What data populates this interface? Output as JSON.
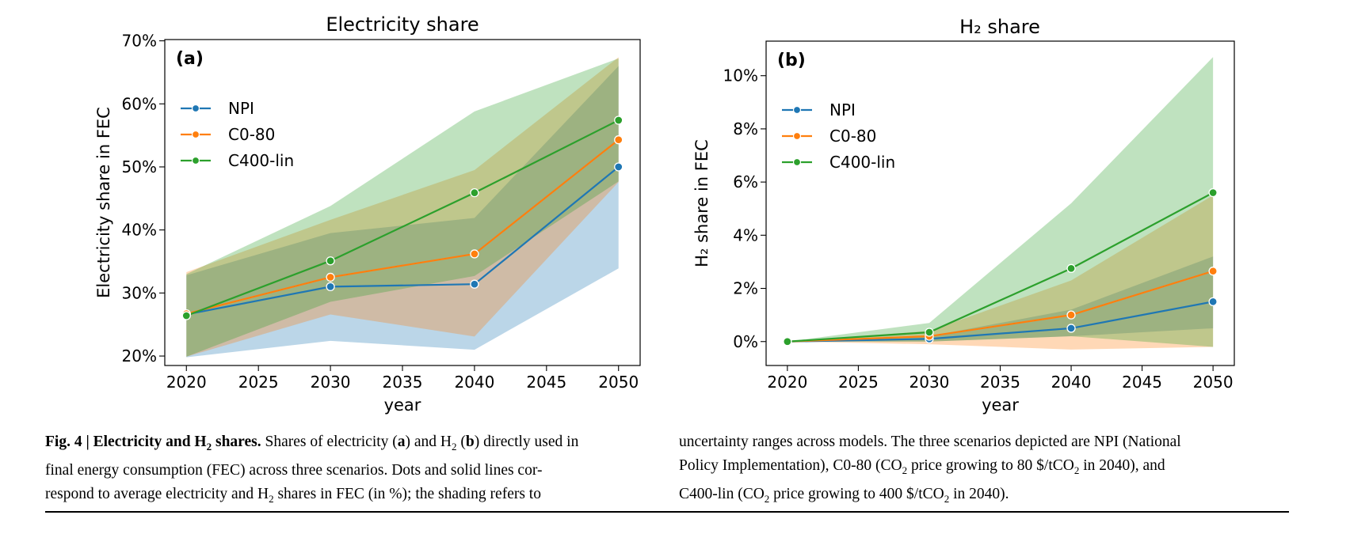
{
  "chart_data": [
    {
      "type": "line",
      "panel_label": "(a)",
      "title": "Electricity share",
      "xlabel": "year",
      "ylabel": "Electricity share in FEC",
      "x_ticks": [
        "2020",
        "2025",
        "2030",
        "2035",
        "2040",
        "2045",
        "2050"
      ],
      "y_ticks": [
        "20%",
        "30%",
        "40%",
        "50%",
        "60%",
        "70%"
      ],
      "xlim": [
        2018.5,
        2051.5
      ],
      "ylim": [
        18.5,
        70.2
      ],
      "legend_position": "upper-left",
      "x": [
        2020,
        2030,
        2040,
        2050
      ],
      "series": [
        {
          "name": "NPI",
          "color": "#1f77b4",
          "values": [
            26.6,
            31.0,
            31.4,
            50.0
          ],
          "band_lower": [
            19.8,
            22.4,
            21.0,
            33.9
          ],
          "band_upper": [
            32.8,
            39.5,
            41.9,
            66.0
          ]
        },
        {
          "name": "C0-80",
          "color": "#ff7f0e",
          "values": [
            26.7,
            32.5,
            36.2,
            54.3
          ],
          "band_lower": [
            19.9,
            26.6,
            23.1,
            47.6
          ],
          "band_upper": [
            33.3,
            41.6,
            49.5,
            67.4
          ]
        },
        {
          "name": "C400-lin",
          "color": "#2ca02c",
          "values": [
            26.4,
            35.1,
            45.9,
            57.4
          ],
          "band_lower": [
            19.9,
            28.6,
            32.7,
            47.7
          ],
          "band_upper": [
            33.0,
            43.8,
            58.8,
            67.2
          ]
        }
      ]
    },
    {
      "type": "line",
      "panel_label": "(b)",
      "title": "H₂ share",
      "xlabel": "year",
      "ylabel": "H₂ share in FEC",
      "x_ticks": [
        "2020",
        "2025",
        "2030",
        "2035",
        "2040",
        "2045",
        "2050"
      ],
      "y_ticks": [
        "0%",
        "2%",
        "4%",
        "6%",
        "8%",
        "10%"
      ],
      "xlim": [
        2018.5,
        2051.5
      ],
      "ylim": [
        -0.9,
        11.3
      ],
      "legend_position": "upper-left",
      "x": [
        2020,
        2030,
        2040,
        2050
      ],
      "series": [
        {
          "name": "NPI",
          "color": "#1f77b4",
          "values": [
            0.0,
            0.1,
            0.5,
            1.5
          ],
          "band_lower": [
            0.0,
            0.0,
            0.2,
            0.5
          ],
          "band_upper": [
            0.0,
            0.2,
            1.2,
            3.2
          ]
        },
        {
          "name": "C0-80",
          "color": "#ff7f0e",
          "values": [
            0.0,
            0.2,
            1.0,
            2.65
          ],
          "band_lower": [
            0.0,
            -0.1,
            -0.3,
            -0.2
          ],
          "band_upper": [
            0.0,
            0.4,
            2.3,
            5.5
          ]
        },
        {
          "name": "C400-lin",
          "color": "#2ca02c",
          "values": [
            0.0,
            0.35,
            2.75,
            5.6
          ],
          "band_lower": [
            0.0,
            0.0,
            0.2,
            -0.2
          ],
          "band_upper": [
            0.0,
            0.7,
            5.2,
            10.7
          ]
        }
      ]
    }
  ],
  "caption": {
    "fig_label": "Fig. 4 | Electricity and H",
    "fig_label_sub": "2",
    "fig_label_end": " shares.",
    "left_lines": [
      [
        " Shares of electricity (",
        "a",
        ") and H",
        "2",
        " (",
        "b",
        ") directly used in"
      ],
      [
        "final energy consumption (FEC) across three scenarios. Dots and solid lines cor-"
      ],
      [
        "respond to average electricity and H",
        "2",
        " shares in FEC (in %); the shading refers to"
      ]
    ],
    "right_line_1": "uncertainty ranges across models. The three scenarios depicted are NPI (National",
    "right_line_2_a": "Policy Implementation), C0-80 (CO",
    "right_line_2_sub": "2",
    "right_line_2_b": " price growing to 80 $/tCO",
    "right_line_2_sub2": "2",
    "right_line_2_c": " in 2040), and",
    "right_line_3_a": "C400-lin (CO",
    "right_line_3_sub": "2",
    "right_line_3_b": " price growing to 400 $/tCO",
    "right_line_3_sub2": "2",
    "right_line_3_c": " in 2040)."
  }
}
